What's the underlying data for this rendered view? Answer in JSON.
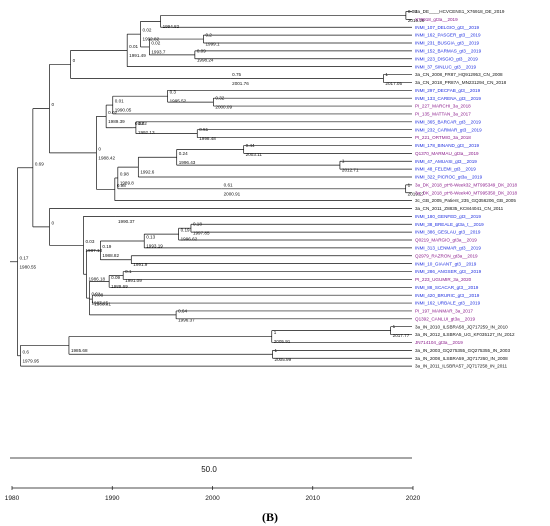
{
  "colors": {
    "black": "#111111",
    "blue": "#1f2fe0",
    "purple": "#8a1a8a"
  },
  "leaves": [
    {
      "label": "3a_DE____HCVCENS1_X76918_DE_2019",
      "color": "black"
    },
    {
      "label": "X76918_gt3a__2019",
      "color": "purple"
    },
    {
      "label": "INMI_107_DELGIO_gt3__2019",
      "color": "blue"
    },
    {
      "label": "INMI_162_PASGER_gt3__2019",
      "color": "blue"
    },
    {
      "label": "INMI_231_BUSGIA_gt3__2019",
      "color": "blue"
    },
    {
      "label": "INMI_152_BARMAS_gt3__2019",
      "color": "blue"
    },
    {
      "label": "INMI_223_DISGIO_gt3__2019",
      "color": "blue"
    },
    {
      "label": "INMI_37_SINLUC_gt3__2019",
      "color": "blue"
    },
    {
      "label": "3a_CN_2008_FR87_HQ912953_CN_2008",
      "color": "black"
    },
    {
      "label": "3a_CN_2018_PR87A_MN231294_CN_2018",
      "color": "black"
    },
    {
      "label": "INMI_297_DECFAB_gt3__2019",
      "color": "blue"
    },
    {
      "label": "INMI_133_CARENA_gt3__2019",
      "color": "blue"
    },
    {
      "label": "PI_227_MARCHI_3a_2018",
      "color": "purple"
    },
    {
      "label": "PI_135_MATTAN_3a_2017",
      "color": "purple"
    },
    {
      "label": "INMI_365_BARCAR_gt3__2019",
      "color": "blue"
    },
    {
      "label": "INMI_232_CARMAR_gt3__2019",
      "color": "blue"
    },
    {
      "label": "PI_221_ORTMIG_3a_2018",
      "color": "purple"
    },
    {
      "label": "INMI_178_BINAND_gt3__2019",
      "color": "blue"
    },
    {
      "label": "Q1370_MARMAU_gt3a__2019",
      "color": "purple"
    },
    {
      "label": "INMI_47_AMUASI_gt3__2019",
      "color": "blue"
    },
    {
      "label": "INMI_48_FELEMI_gt3__2019",
      "color": "blue"
    },
    {
      "label": "INMI_322_PICROC_gt3a__2019",
      "color": "blue"
    },
    {
      "label": "3a_DK_2018_pt*8-Week32_MT995349_DK_2018",
      "color": "purple"
    },
    {
      "label": "3a_DK_2018_pt*8-Week40_MT995350_DK_2018",
      "color": "purple"
    },
    {
      "label": "3c_GB_2005_Patient_235_GQ356206_GB_2005",
      "color": "black"
    },
    {
      "label": "3a_CN_2011_Z8835_KC844041_CN_2011",
      "color": "black"
    },
    {
      "label": "INMI_180_GENFED_gt3__2019",
      "color": "blue"
    },
    {
      "label": "INMI_38_BREALE_gt3a_t__2019",
      "color": "blue"
    },
    {
      "label": "INMI_386_GESLAU_gt3__2019",
      "color": "blue"
    },
    {
      "label": "Q0219_MARGIO_gt3a__2019",
      "color": "purple"
    },
    {
      "label": "INMI_313_LENMAR_gt3__2019",
      "color": "blue"
    },
    {
      "label": "Q2979_RAZRON_gt3a__2019",
      "color": "purple"
    },
    {
      "label": "INMI_10_GIAANT_gt3__2019",
      "color": "blue"
    },
    {
      "label": "INMI_286_ANGSER_gt3__2019",
      "color": "blue"
    },
    {
      "label": "PI_223_UGUMIR_3a_2020",
      "color": "purple"
    },
    {
      "label": "INMI_88_SCACAR_gt3__2019",
      "color": "blue"
    },
    {
      "label": "INMI_420_BRURIC_gt3__2019",
      "color": "blue"
    },
    {
      "label": "INMI_162_URBALE_gt3__2019",
      "color": "blue"
    },
    {
      "label": "PI_197_MANMAR_3a_2017",
      "color": "purple"
    },
    {
      "label": "Q1392_CANLUI_gt3a__2019",
      "color": "purple"
    },
    {
      "label": "3a_IN_2010_ILSBRA58_JQ717259_IN_2010",
      "color": "black"
    },
    {
      "label": "3a_IN_2012_ILSBRA5_UG_KF035127_IN_2012",
      "color": "black"
    },
    {
      "label": "JN714104_gt3a__2019",
      "color": "purple"
    },
    {
      "label": "3a_IN_2003_GQ275355_GQ275355_IN_2003",
      "color": "black"
    },
    {
      "label": "3a_IN_2008_ILSBRA59_JQ717260_IN_2008",
      "color": "black"
    },
    {
      "label": "3a_IN_2011_ILSBRA57_JQ717258_IN_2011",
      "color": "black"
    }
  ],
  "tree": {
    "ch": [
      {
        "ch": [
          {
            "ch": [
              {
                "ch": [
                  {
                    "ch": [
                      {
                        "ch": [
                          {
                            "ch": [
                              {
                                "ch": [
                                  {
                                    "leaf": 0
                                  },
                                  {
                                    "leaf": 1
                                  }
                                ],
                                "s": "0.08",
                                "d": "2019.29"
                              },
                              {
                                "leaf": 2
                              }
                            ],
                            "s": "",
                            "d": "1994.82"
                          },
                          {
                            "ch": [
                              {
                                "ch": [
                                  {
                                    "leaf": 3
                                  },
                                  {
                                    "leaf": 4
                                  }
                                ],
                                "s": "0.2",
                                "d": "1999.1"
                              },
                              {
                                "ch": [
                                  {
                                    "leaf": 5
                                  },
                                  {
                                    "leaf": 6
                                  }
                                ],
                                "s": "0.09",
                                "d": "1998.24"
                              }
                            ],
                            "s": "0.02",
                            "d": "1993.7"
                          }
                        ],
                        "s": "0.02",
                        "d": "1992.82"
                      },
                      {
                        "leaf": 7
                      }
                    ],
                    "s": "0.01",
                    "d": "1991.49"
                  },
                  {
                    "ch": [
                      {
                        "ch": [
                          {
                            "leaf": 8
                          },
                          {
                            "leaf": 9
                          }
                        ],
                        "s": "1",
                        "d": "2017.05"
                      }
                    ],
                    "s": "0.75",
                    "d": "2001.76"
                  }
                ],
                "s": "0",
                "d": ""
              },
              {
                "ch": [
                  {
                    "ch": [
                      {
                        "ch": [
                          {
                            "ch": [
                              {
                                "leaf": 10
                              },
                              {
                                "ch": [
                                  {
                                    "leaf": 11
                                  },
                                  {
                                    "leaf": 12
                                  }
                                ],
                                "s": "0.32",
                                "d": "2000.09"
                              }
                            ],
                            "s": "0.3",
                            "d": "1995.52"
                          },
                          {
                            "leaf": 13
                          }
                        ],
                        "s": "0.01",
                        "d": "1990.05"
                      },
                      {
                        "ch": [
                          {
                            "ch": [
                              {
                                "leaf": 14
                              },
                              {
                                "ch": [
                                  {
                                    "leaf": 15
                                  },
                                  {
                                    "leaf": 16
                                  }
                                ],
                                "s": "0.51",
                                "d": "1998.48"
                              }
                            ],
                            "s": "0.02",
                            "d": "1992.13"
                          }
                        ],
                        "s": "0.02",
                        "d": ""
                      }
                    ],
                    "s": "0.02",
                    "d": "1989.39"
                  },
                  {
                    "ch": [
                      {
                        "ch": [
                          {
                            "ch": [
                              {
                                "ch": [
                                  {
                                    "ch": [
                                      {
                                        "leaf": 17
                                      },
                                      {
                                        "leaf": 18
                                      }
                                    ],
                                    "s": "0.44",
                                    "d": "2003.11"
                                  },
                                  {
                                    "ch": [
                                      {
                                        "leaf": 19
                                      },
                                      {
                                        "leaf": 20
                                      }
                                    ],
                                    "s": "1",
                                    "d": "2012.71"
                                  }
                                ],
                                "s": "0.24",
                                "d": "1996.43"
                              },
                              {
                                "leaf": 21
                              }
                            ],
                            "s": "",
                            "d": "1992.6"
                          },
                          {
                            "ch": [
                              {
                                "ch": [
                                  {
                                    "leaf": 22
                                  },
                                  {
                                    "leaf": 23
                                  }
                                ],
                                "s": "1",
                                "d": "2019.27"
                              }
                            ],
                            "s": "0.61",
                            "d": "2000.91"
                          }
                        ],
                        "s": "0.98",
                        "d": "1989.8"
                      },
                      {
                        "leaf": 24
                      }
                    ],
                    "s": "0.98",
                    "d": ""
                  }
                ],
                "s": "0",
                "d": "1988.42"
              }
            ],
            "s": "0",
            "d": ""
          },
          {
            "ch": [
              {
                "leaf": 25
              },
              {
                "ch": [
                  {
                    "ch": [
                      {
                        "leaf": 26
                      }
                    ],
                    "s": "",
                    "d": "1990.37"
                  },
                  {
                    "ch": [
                      {
                        "ch": [
                          {
                            "ch": [
                              {
                                "ch": [
                                  {
                                    "ch": [
                                      {
                                        "leaf": 27
                                      },
                                      {
                                        "leaf": 28
                                      }
                                    ],
                                    "s": "0.18",
                                    "d": "1997.85"
                                  },
                                  {
                                    "leaf": 29
                                  }
                                ],
                                "s": "0.19",
                                "d": "1996.62"
                              },
                              {
                                "leaf": 30
                              }
                            ],
                            "s": "0.13",
                            "d": "1993.19"
                          },
                          {
                            "ch": [
                              {
                                "leaf": 31
                              },
                              {
                                "leaf": 32
                              }
                            ],
                            "s": "",
                            "d": "1991.9"
                          }
                        ],
                        "s": "0.19",
                        "d": "1988.82"
                      },
                      {
                        "ch": [
                          {
                            "ch": [
                              {
                                "ch": [
                                  {
                                    "leaf": 33
                                  },
                                  {
                                    "leaf": 34
                                  }
                                ],
                                "s": "0.1",
                                "d": "1991.09"
                              },
                              {
                                "leaf": 35
                              }
                            ],
                            "s": "0.09",
                            "d": "1989.69"
                          },
                          {
                            "ch": [
                              {
                                "leaf": 36
                              },
                              {
                                "leaf": 37
                              }
                            ],
                            "s": "0.08",
                            "d": "1988.01"
                          },
                          {
                            "ch": [
                              {
                                "leaf": 38
                              },
                              {
                                "leaf": 39
                              }
                            ],
                            "s": "0.64",
                            "d": "1996.37"
                          }
                        ],
                        "s": "0.01",
                        "d": "1987.15"
                      }
                    ],
                    "s": "",
                    "d": "1986.18"
                  }
                ],
                "s": "0.03",
                "d": "1987.13"
              }
            ],
            "s": "0",
            "d": ""
          }
        ],
        "s": "0.69",
        "d": ""
      },
      {
        "ch": [
          {
            "ch": [
              {
                "ch": [
                  {
                    "ch": [
                      {
                        "leaf": 40
                      },
                      {
                        "leaf": 41
                      }
                    ],
                    "s": "1",
                    "d": "2017.77"
                  },
                  {
                    "leaf": 42
                  }
                ],
                "s": "1",
                "d": "2005.91"
              },
              {
                "ch": [
                  {
                    "leaf": 43
                  },
                  {
                    "leaf": 44
                  }
                ],
                "s": "1",
                "d": "2005.99"
              }
            ],
            "s": "",
            "d": "1985.68"
          },
          {
            "leaf": 45
          }
        ],
        "s": "0.6",
        "d": "1979.95"
      }
    ],
    "s": "0.17",
    "d": "1980.55"
  },
  "scale": {
    "label": "50.0"
  },
  "axis": {
    "ticks": [
      "1980",
      "1990",
      "2000",
      "2010",
      "2020"
    ]
  },
  "panel_label": "(B)"
}
